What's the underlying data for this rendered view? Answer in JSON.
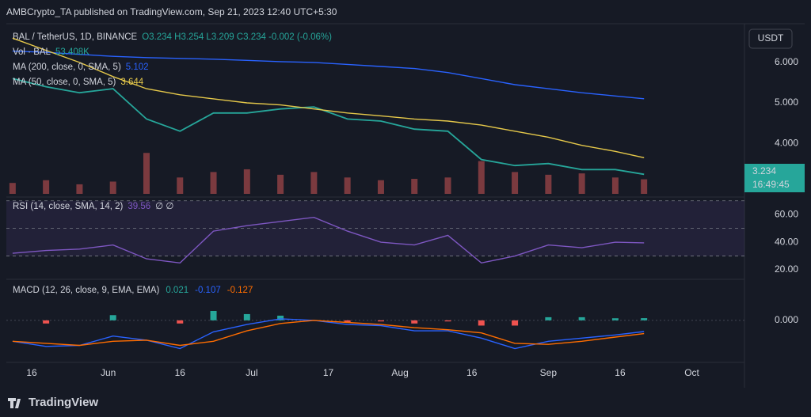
{
  "page": {
    "publisher": "AMBCrypto_TA published on TradingView.com, Sep 21, 2023 12:40 UTC+5:30",
    "footer": "TradingView",
    "currency_button": "USDT",
    "countdown": "16:49:45"
  },
  "chart_data": [
    {
      "type": "line",
      "title": "BAL / TetherUS, 1D, BINANCE",
      "ohlc_text": "O3.234  H3.254  L3.209  C3.234  -0.002 (-0.06%)",
      "x": [
        -4,
        3,
        10,
        17,
        24,
        31,
        38,
        45,
        52,
        59,
        66,
        73,
        80,
        87,
        94,
        101,
        108,
        115,
        122,
        128
      ],
      "xlim": [
        -5.3,
        149
      ],
      "xticks": [
        {
          "value": 0,
          "label": "16"
        },
        {
          "value": 16,
          "label": "Jun"
        },
        {
          "value": 31,
          "label": "16"
        },
        {
          "value": 46,
          "label": "Jul"
        },
        {
          "value": 62,
          "label": "17"
        },
        {
          "value": 77,
          "label": "Aug"
        },
        {
          "value": 92,
          "label": "16"
        },
        {
          "value": 108,
          "label": "Sep"
        },
        {
          "value": 123,
          "label": "16"
        },
        {
          "value": 138,
          "label": "Oct"
        }
      ],
      "ylim": [
        2.75,
        6.8
      ],
      "yticks": [
        {
          "value": 4,
          "label": "4.000"
        },
        {
          "value": 5,
          "label": "5.000"
        },
        {
          "value": 6,
          "label": "6.000"
        }
      ],
      "y2lim": [
        0,
        600
      ],
      "series": [
        {
          "name": "BAL",
          "color": "#26a69a",
          "values": [
            5.6,
            5.4,
            5.25,
            5.35,
            4.6,
            4.3,
            4.75,
            4.75,
            4.85,
            4.9,
            4.6,
            4.55,
            4.35,
            4.3,
            3.6,
            3.45,
            3.5,
            3.35,
            3.35,
            3.234
          ]
        },
        {
          "name": "MA (200, close, 0, SMA, 5)",
          "color": "#2962ff",
          "values": [
            6.28,
            6.25,
            6.2,
            6.15,
            6.12,
            6.1,
            6.08,
            6.05,
            6.02,
            6.0,
            5.95,
            5.9,
            5.85,
            5.75,
            5.6,
            5.45,
            5.35,
            5.25,
            5.17,
            5.102
          ]
        },
        {
          "name": "MA (50, close, 0, SMA, 5)",
          "color": "#e5c84a",
          "values": [
            6.6,
            6.3,
            6.0,
            5.65,
            5.35,
            5.2,
            5.1,
            5.0,
            4.95,
            4.85,
            4.75,
            4.68,
            4.6,
            4.55,
            4.45,
            4.3,
            4.15,
            3.95,
            3.8,
            3.644
          ]
        },
        {
          "name": "Vol · BAL",
          "color": "#7b3a3f",
          "axis": "y2",
          "values": [
            40,
            50,
            35,
            45,
            150,
            60,
            80,
            90,
            70,
            80,
            60,
            50,
            55,
            60,
            120,
            80,
            70,
            75,
            60,
            53.408
          ],
          "value_labels": [
            "",
            "",
            "",
            "",
            "",
            "",
            "",
            "",
            "",
            "",
            "",
            "",
            "",
            "",
            "",
            "",
            "",
            "",
            "",
            "53.408K"
          ]
        }
      ]
    },
    {
      "type": "line",
      "title": "RSI (14, close, SMA, 14, 2)",
      "suffix_text": "∅ ∅",
      "ylim": [
        16,
        71
      ],
      "yticks": [
        {
          "value": 20,
          "label": "20.00"
        },
        {
          "value": 40,
          "label": "40.00"
        },
        {
          "value": 60,
          "label": "60.00"
        }
      ],
      "hlines": [
        70,
        50,
        30
      ],
      "series": [
        {
          "name": "RSI",
          "color": "#7e57c2",
          "values": [
            32,
            34,
            35,
            38,
            28,
            25,
            48,
            52,
            55,
            58,
            48,
            40,
            38,
            45,
            25,
            30,
            38,
            36,
            40,
            39.56
          ]
        }
      ]
    },
    {
      "type": "line",
      "title": "MACD (12, 26, close, 9, EMA, EMA)",
      "ylim": [
        -0.38,
        0.34
      ],
      "yticks": [
        {
          "value": 0,
          "label": "0.000"
        }
      ],
      "series": [
        {
          "name": "Histogram",
          "style": "histogram",
          "color": "#26a69a",
          "neg_color": "#ef5350",
          "values": [
            0,
            -0.03,
            0,
            0.05,
            0,
            -0.03,
            0.09,
            0.06,
            0.045,
            0,
            -0.02,
            -0.01,
            -0.03,
            -0.01,
            -0.05,
            -0.05,
            0.03,
            0.03,
            0.02,
            0.021
          ]
        },
        {
          "name": "MACD",
          "color": "#2962ff",
          "values": [
            -0.2,
            -0.25,
            -0.24,
            -0.15,
            -0.19,
            -0.27,
            -0.11,
            -0.04,
            0.015,
            0,
            -0.04,
            -0.05,
            -0.1,
            -0.1,
            -0.17,
            -0.27,
            -0.2,
            -0.17,
            -0.14,
            -0.107
          ]
        },
        {
          "name": "Signal",
          "color": "#ff6d00",
          "values": [
            -0.2,
            -0.22,
            -0.24,
            -0.2,
            -0.19,
            -0.24,
            -0.2,
            -0.1,
            -0.03,
            0,
            -0.02,
            -0.04,
            -0.07,
            -0.09,
            -0.12,
            -0.22,
            -0.23,
            -0.2,
            -0.16,
            -0.127
          ]
        }
      ]
    }
  ]
}
